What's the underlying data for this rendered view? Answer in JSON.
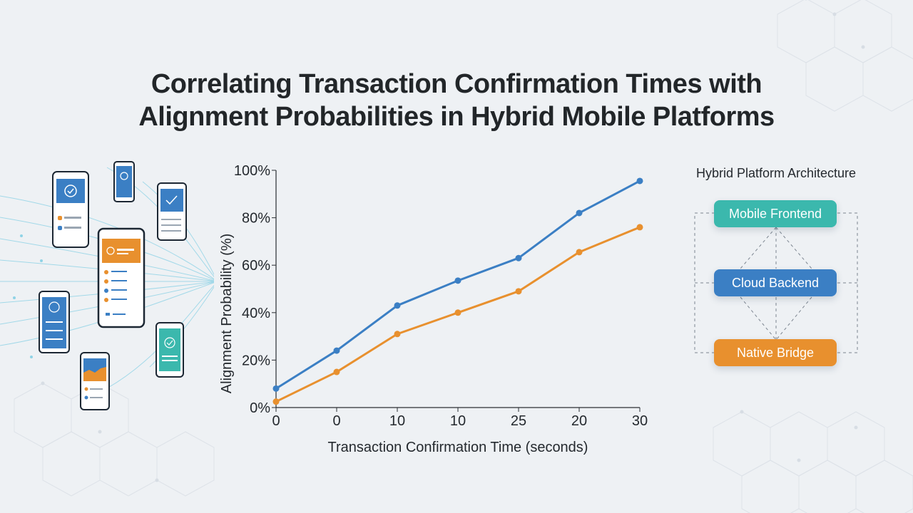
{
  "title": {
    "line1": "Correlating Transaction Confirmation Times with",
    "line2": "Alignment Probabilities in Hybrid Mobile Platforms"
  },
  "colors": {
    "blue": "#3b7fc4",
    "orange": "#e8902e",
    "teal": "#3bb8ad",
    "background": "#eef1f4"
  },
  "illustration": {
    "description_icons": [
      "phone-icon",
      "checkmark-icon",
      "data-stream-lines"
    ]
  },
  "chart_data": {
    "type": "line",
    "categories": [
      "0",
      "0",
      "10",
      "10",
      "25",
      "20",
      "30"
    ],
    "xlabel": "Transaction Confirmation Time (seconds)",
    "ylabel": "Alignment Probability (%)",
    "yticks": [
      "0%",
      "20%",
      "40%",
      "60%",
      "80%",
      "100%"
    ],
    "ylim": [
      0,
      100
    ],
    "grid": false,
    "series": [
      {
        "color": "#3b7fc4",
        "values": [
          8,
          24,
          43,
          53.5,
          63,
          82,
          95.5
        ]
      },
      {
        "color": "#e8902e",
        "values": [
          2.5,
          15,
          31,
          40,
          49,
          65.5,
          76
        ]
      }
    ]
  },
  "architecture": {
    "title": "Hybrid Platform Architecture",
    "nodes": [
      {
        "label": "Mobile Frontend",
        "color": "#3bb8ad"
      },
      {
        "label": "Cloud Backend",
        "color": "#3b7fc4"
      },
      {
        "label": "Native Bridge",
        "color": "#e8902e"
      }
    ]
  }
}
